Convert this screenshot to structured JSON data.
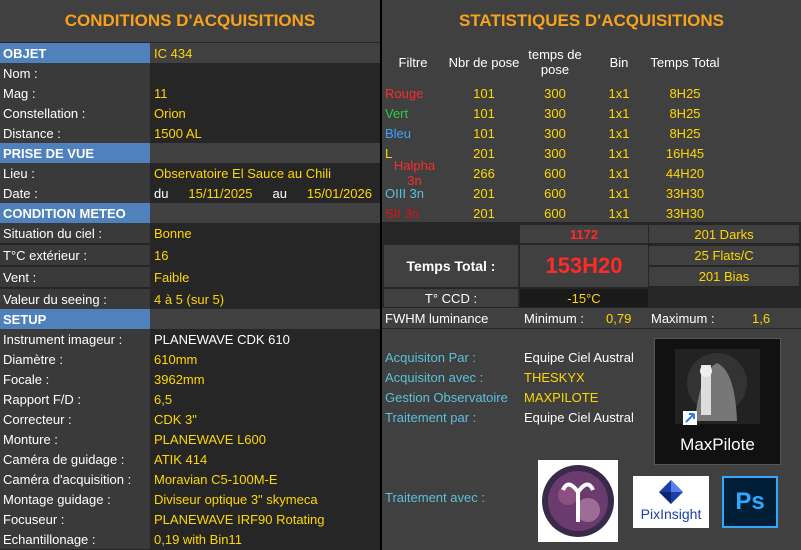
{
  "left": {
    "title": "CONDITIONS D'ACQUISITIONS",
    "rows": [
      {
        "label": "OBJET",
        "value": "IC 434",
        "section": true
      },
      {
        "label": "Nom :",
        "value": ""
      },
      {
        "label": "Mag :",
        "value": "11"
      },
      {
        "label": "Constellation :",
        "value": "Orion"
      },
      {
        "label": "Distance :",
        "value": "1500 AL"
      },
      {
        "label": "PRISE DE VUE",
        "value": "",
        "section": true
      },
      {
        "label": "Lieu :",
        "value": "Observatoire El Sauce au Chili"
      },
      {
        "label": "Date :",
        "value": ""
      },
      {
        "label": "CONDITION METEO",
        "value": "",
        "section": true
      },
      {
        "label": "Situation du ciel  :",
        "value": "Bonne"
      },
      {
        "label": "T°C extérieur :",
        "value": "16"
      },
      {
        "label": "Vent :",
        "value": "Faible"
      },
      {
        "label": "Valeur du seeing  :",
        "value": "4 à 5   (sur 5)"
      },
      {
        "label": "SETUP",
        "value": "",
        "section": true
      },
      {
        "label": "Instrument imageur :",
        "value": "PLANEWAVE CDK 610",
        "white": true
      },
      {
        "label": "Diamètre :",
        "value": "610mm"
      },
      {
        "label": "Focale :",
        "value": "3962mm"
      },
      {
        "label": "Rapport F/D :",
        "value": "6,5"
      },
      {
        "label": "Correcteur :",
        "value": "CDK 3\""
      },
      {
        "label": "Monture :",
        "value": "PLANEWAVE L600"
      },
      {
        "label": "Caméra de guidage :",
        "value": "ATIK 414"
      },
      {
        "label": "Caméra d'acquisition :",
        "value": "Moravian C5-100M-E"
      },
      {
        "label": "Montage guidage :",
        "value": "Diviseur optique 3\" skymeca"
      },
      {
        "label": "Focuseur :",
        "value": "PLANEWAVE IRF90 Rotating"
      },
      {
        "label": "Echantillonage :",
        "value": "0,19 with Bin11"
      }
    ],
    "date": {
      "du": "du",
      "start": "15/11/2025",
      "au": "au",
      "end": "15/01/2026"
    }
  },
  "right": {
    "title": "STATISTIQUES D'ACQUISITIONS",
    "headers": {
      "filtre": "Filtre",
      "nbr": "Nbr de pose",
      "temps": "temps de pose",
      "bin": "Bin",
      "total": "Temps Total"
    },
    "filters": [
      {
        "name": "Rouge",
        "nbr": "101",
        "temps": "300",
        "bin": "1x1",
        "total": "8H25",
        "color": "#ff2a2a"
      },
      {
        "name": "Vert",
        "nbr": "101",
        "temps": "300",
        "bin": "1x1",
        "total": "8H25",
        "color": "#2ecc40"
      },
      {
        "name": "Bleu",
        "nbr": "101",
        "temps": "300",
        "bin": "1x1",
        "total": "8H25",
        "color": "#3fa0ff"
      },
      {
        "name": "L",
        "nbr": "201",
        "temps": "300",
        "bin": "1x1",
        "total": "16H45",
        "color": "#ffd700"
      },
      {
        "name": "Halpha 3n",
        "nbr": "266",
        "temps": "600",
        "bin": "1x1",
        "total": "44H20",
        "color": "#ff2a2a"
      },
      {
        "name": "OIII 3n",
        "nbr": "201",
        "temps": "600",
        "bin": "1x1",
        "total": "33H30",
        "color": "#5bc0de"
      },
      {
        "name": "SII 3n",
        "nbr": "201",
        "temps": "600",
        "bin": "1x1",
        "total": "33H30",
        "color": "#e01010"
      }
    ],
    "total_poses": "1172",
    "darks": "201 Darks",
    "flats": "25 Flats/C",
    "bias": "201 Bias",
    "temps_total_label": "Temps Total :",
    "temps_total_value": "153H20",
    "ccd_label": "T° CCD :",
    "ccd_value": "-15°C",
    "fwhm_label": "FWHM luminance",
    "min_label": "Minimum :",
    "min_value": "0,79",
    "max_label": "Maximum :",
    "max_value": "1,6",
    "acq_par_label": "Acquisiton Par :",
    "acq_par_value": "Equipe Ciel Austral",
    "acq_avec_label": "Acquisiton avec :",
    "acq_avec_value": "THESKYX",
    "gestion_label": "Gestion Observatoire",
    "gestion_value": "MAXPILOTE",
    "trait_par_label": "Traitement par :",
    "trait_par_value": "Equipe Ciel Austral",
    "trait_avec_label": "Traitement avec :",
    "maxpilote_label": "MaxPilote",
    "pixinsight_label": "PixInsight",
    "ps_label": "Ps",
    "colors": {
      "accent": "#f7a21b",
      "section": "#4f81bd",
      "value": "#ffd700"
    }
  }
}
